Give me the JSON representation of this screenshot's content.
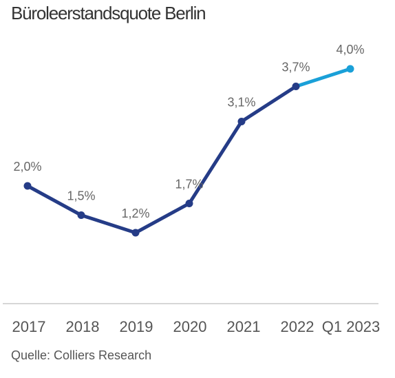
{
  "title": "Büroleerstandsquote Berlin",
  "source": "Quelle: Colliers Research",
  "colors": {
    "main_line": "#253C87",
    "highlight_line": "#1AA0D8",
    "axis": "#C8C8C8"
  },
  "chart_data": {
    "type": "line",
    "title": "Büroleerstandsquote Berlin",
    "categories": [
      "2017",
      "2018",
      "2019",
      "2020",
      "2021",
      "2022",
      "Q1 2023"
    ],
    "values": [
      2.0,
      1.5,
      1.2,
      1.7,
      3.1,
      3.7,
      4.0
    ],
    "data_labels": [
      "2,0%",
      "1,5%",
      "1,2%",
      "1,7%",
      "3,1%",
      "3,7%",
      "4,0%"
    ],
    "ylim": [
      0,
      4.5
    ],
    "unit": "%",
    "grid": false,
    "highlight_last_segment": true
  }
}
